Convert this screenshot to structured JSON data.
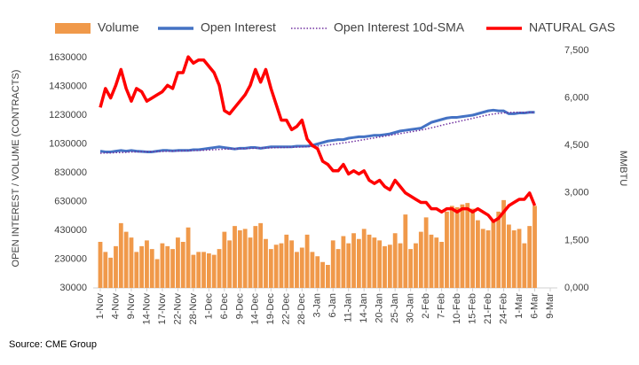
{
  "chart_data": {
    "type": "combo",
    "legend": "top",
    "categories": [
      "1-Nov",
      null,
      null,
      "4-Nov",
      null,
      null,
      "9-Nov",
      null,
      null,
      "14-Nov",
      null,
      null,
      "17-Nov",
      null,
      null,
      "22-Nov",
      null,
      null,
      "28-Nov",
      null,
      null,
      "1-Dec",
      null,
      null,
      "6-Dec",
      null,
      null,
      "9-Dec",
      null,
      null,
      "14-Dec",
      null,
      null,
      "19-Dec",
      null,
      null,
      "22-Dec",
      null,
      null,
      "28-Dec",
      null,
      null,
      "3-Jan",
      null,
      null,
      "6-Jan",
      null,
      null,
      "11-Jan",
      null,
      null,
      "14-Jan",
      null,
      null,
      "20-Jan",
      null,
      null,
      "25-Jan",
      null,
      null,
      "30-Jan",
      null,
      null,
      "2-Feb",
      null,
      null,
      "7-Feb",
      null,
      null,
      "10-Feb",
      null,
      null,
      "15-Feb",
      null,
      null,
      "21-Feb",
      null,
      null,
      "24-Feb",
      null,
      null,
      "1-Mar",
      null,
      null,
      "6-Mar",
      null,
      null,
      "9-Mar"
    ],
    "series": [
      {
        "name": "Volume",
        "type": "bar",
        "color": "#f0994a",
        "values": [
          350000,
          280000,
          240000,
          320000,
          480000,
          420000,
          380000,
          280000,
          320000,
          360000,
          300000,
          230000,
          340000,
          320000,
          300000,
          380000,
          350000,
          450000,
          260000,
          280000,
          280000,
          270000,
          260000,
          300000,
          420000,
          360000,
          460000,
          430000,
          440000,
          380000,
          460000,
          480000,
          370000,
          300000,
          330000,
          340000,
          400000,
          360000,
          280000,
          310000,
          400000,
          280000,
          250000,
          210000,
          190000,
          360000,
          300000,
          390000,
          340000,
          410000,
          370000,
          440000,
          400000,
          380000,
          360000,
          320000,
          330000,
          410000,
          340000,
          540000,
          300000,
          340000,
          420000,
          520000,
          400000,
          380000,
          350000,
          560000,
          600000,
          590000,
          610000,
          620000,
          580000,
          500000,
          440000,
          430000,
          500000,
          560000,
          640000,
          470000,
          430000,
          440000,
          340000,
          460000,
          600000,
          null,
          null,
          null
        ]
      },
      {
        "name": "Open Interest",
        "type": "line",
        "color": "#4472c4",
        "values": [
          980000,
          975000,
          975000,
          980000,
          985000,
          980000,
          985000,
          980000,
          978000,
          975000,
          975000,
          980000,
          985000,
          985000,
          982000,
          985000,
          985000,
          985000,
          990000,
          990000,
          995000,
          1000000,
          1005000,
          1010000,
          1005000,
          1000000,
          995000,
          1000000,
          1000000,
          1005000,
          1005000,
          1000000,
          1005000,
          1010000,
          1010000,
          1010000,
          1010000,
          1010000,
          1015000,
          1015000,
          1015000,
          1020000,
          1030000,
          1040000,
          1050000,
          1055000,
          1060000,
          1060000,
          1070000,
          1075000,
          1080000,
          1080000,
          1085000,
          1090000,
          1090000,
          1095000,
          1100000,
          1110000,
          1120000,
          1125000,
          1130000,
          1135000,
          1140000,
          1160000,
          1180000,
          1190000,
          1200000,
          1210000,
          1215000,
          1215000,
          1220000,
          1225000,
          1230000,
          1240000,
          1250000,
          1260000,
          1265000,
          1260000,
          1260000,
          1240000,
          1240000,
          1245000,
          1245000,
          1250000,
          1250000,
          null,
          null,
          null
        ]
      },
      {
        "name": "Open Interest 10d-SMA",
        "type": "dotted",
        "color": "#7030a0",
        "values": [
          965000,
          968000,
          968000,
          970000,
          970000,
          972000,
          975000,
          975000,
          976000,
          976000,
          976000,
          977000,
          978000,
          979000,
          980000,
          981000,
          982000,
          983000,
          984000,
          985000,
          986000,
          988000,
          990000,
          992000,
          994000,
          995000,
          996000,
          997000,
          998000,
          999000,
          1000000,
          1001000,
          1002000,
          1003000,
          1004000,
          1005000,
          1006000,
          1007000,
          1008000,
          1009000,
          1010000,
          1012000,
          1015000,
          1018000,
          1022000,
          1027000,
          1032000,
          1037000,
          1042000,
          1048000,
          1054000,
          1060000,
          1066000,
          1072000,
          1078000,
          1084000,
          1090000,
          1096000,
          1102000,
          1108000,
          1114000,
          1120000,
          1126000,
          1134000,
          1142000,
          1150000,
          1160000,
          1168000,
          1176000,
          1184000,
          1192000,
          1200000,
          1208000,
          1216000,
          1224000,
          1232000,
          1238000,
          1242000,
          1246000,
          1248000,
          1250000,
          1250000,
          1250000,
          1250000,
          1250000,
          null,
          null,
          null
        ]
      },
      {
        "name": "NATURAL GAS",
        "type": "line",
        "axis": "y2",
        "color": "#ff0000",
        "values": [
          5.7,
          6.3,
          6.0,
          6.4,
          6.9,
          6.3,
          5.9,
          6.3,
          6.2,
          5.9,
          6.0,
          6.1,
          6.2,
          6.4,
          6.3,
          6.8,
          6.8,
          7.3,
          7.1,
          7.2,
          7.2,
          7.0,
          6.8,
          6.4,
          5.6,
          5.5,
          5.7,
          5.9,
          6.1,
          6.4,
          6.9,
          6.5,
          6.9,
          6.3,
          5.8,
          5.3,
          5.3,
          5.0,
          5.1,
          5.3,
          4.7,
          4.5,
          4.4,
          4.0,
          3.9,
          3.7,
          3.7,
          3.9,
          3.6,
          3.7,
          3.6,
          3.7,
          3.4,
          3.3,
          3.4,
          3.2,
          3.1,
          3.4,
          3.2,
          3.0,
          2.9,
          2.8,
          2.7,
          2.7,
          2.5,
          2.5,
          2.4,
          2.5,
          2.5,
          2.4,
          2.5,
          2.5,
          2.4,
          2.5,
          2.4,
          2.3,
          2.1,
          2.2,
          2.4,
          2.6,
          2.7,
          2.8,
          2.8,
          3.0,
          2.6,
          null,
          null,
          null
        ]
      }
    ],
    "ylabel": "OPEN INTEREST / VOLUME (CONTRACTS)",
    "y2label": "MMBTU",
    "ylim": [
      30000,
      1630000
    ],
    "yticks": [
      30000,
      230000,
      430000,
      630000,
      830000,
      1030000,
      1230000,
      1430000,
      1630000
    ],
    "y2lim": [
      0,
      7.5
    ],
    "y2ticks": [
      {
        "value": 0,
        "label": "0,000"
      },
      {
        "value": 1.5,
        "label": "1,500"
      },
      {
        "value": 3,
        "label": "3,000"
      },
      {
        "value": 4.5,
        "label": "4,500"
      },
      {
        "value": 6,
        "label": "6,000"
      },
      {
        "value": 7.5,
        "label": "7,500"
      }
    ],
    "source": "Source: CME Group"
  }
}
